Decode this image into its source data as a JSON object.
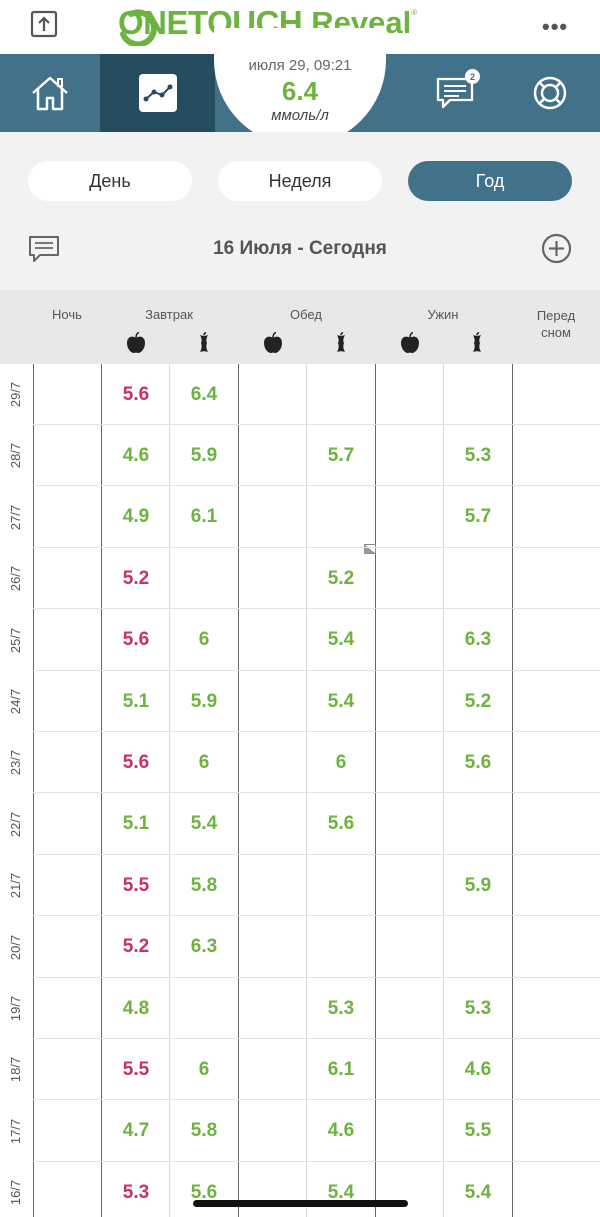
{
  "app": {
    "logo_one": "ONETOUCH",
    "logo_reveal": "Reveal",
    "logo_reg": "®",
    "more_label": "•••"
  },
  "latest_reading": {
    "datetime": "июля 29, 09:21",
    "value": "6.4",
    "unit": "ммоль/л"
  },
  "nav": {
    "messages_badge": "2"
  },
  "period_tabs": [
    {
      "label": "День",
      "active": false
    },
    {
      "label": "Неделя",
      "active": false
    },
    {
      "label": "Год",
      "active": true
    }
  ],
  "range": {
    "label": "16 Июля - Сегодня"
  },
  "columns": {
    "night": "Ночь",
    "breakfast": "Завтрак",
    "lunch": "Обед",
    "dinner": "Ужин",
    "bedtime_line1": "Перед",
    "bedtime_line2": "сном"
  },
  "colors": {
    "brand_green": "#6cb33f",
    "nav_teal": "#417289",
    "nav_active": "#264d5f",
    "low_value": "#cc2f64"
  },
  "rows": [
    {
      "date": "29/7",
      "bb": "5.6",
      "bb_s": "low",
      "ba": "6.4",
      "ba_s": "high",
      "lb": "",
      "la": "",
      "db": "",
      "da": ""
    },
    {
      "date": "28/7",
      "bb": "4.6",
      "bb_s": "high",
      "ba": "5.9",
      "ba_s": "high",
      "lb": "",
      "la": "5.7",
      "db": "",
      "da": "5.3"
    },
    {
      "date": "27/7",
      "bb": "4.9",
      "bb_s": "high",
      "ba": "6.1",
      "ba_s": "high",
      "lb": "",
      "la": "",
      "db": "",
      "da": "5.7"
    },
    {
      "date": "26/7",
      "bb": "5.2",
      "bb_s": "low",
      "ba": "",
      "ba_s": "high",
      "lb": "",
      "la": "5.2",
      "db": "",
      "da": ""
    },
    {
      "date": "25/7",
      "bb": "5.6",
      "bb_s": "low",
      "ba": "6",
      "ba_s": "high",
      "lb": "",
      "la": "5.4",
      "db": "",
      "da": "6.3"
    },
    {
      "date": "24/7",
      "bb": "5.1",
      "bb_s": "high",
      "ba": "5.9",
      "ba_s": "high",
      "lb": "",
      "la": "5.4",
      "db": "",
      "da": "5.2"
    },
    {
      "date": "23/7",
      "bb": "5.6",
      "bb_s": "low",
      "ba": "6",
      "ba_s": "high",
      "lb": "",
      "la": "6",
      "db": "",
      "da": "5.6"
    },
    {
      "date": "22/7",
      "bb": "5.1",
      "bb_s": "high",
      "ba": "5.4",
      "ba_s": "high",
      "lb": "",
      "la": "5.6",
      "db": "",
      "da": ""
    },
    {
      "date": "21/7",
      "bb": "5.5",
      "bb_s": "low",
      "ba": "5.8",
      "ba_s": "high",
      "lb": "",
      "la": "",
      "db": "",
      "da": "5.9"
    },
    {
      "date": "20/7",
      "bb": "5.2",
      "bb_s": "low",
      "ba": "6.3",
      "ba_s": "high",
      "lb": "",
      "la": "",
      "db": "",
      "da": ""
    },
    {
      "date": "19/7",
      "bb": "4.8",
      "bb_s": "high",
      "ba": "",
      "ba_s": "high",
      "lb": "",
      "la": "5.3",
      "db": "",
      "da": "5.3"
    },
    {
      "date": "18/7",
      "bb": "5.5",
      "bb_s": "low",
      "ba": "6",
      "ba_s": "high",
      "lb": "",
      "la": "6.1",
      "db": "",
      "da": "4.6"
    },
    {
      "date": "17/7",
      "bb": "4.7",
      "bb_s": "high",
      "ba": "5.8",
      "ba_s": "high",
      "lb": "",
      "la": "4.6",
      "db": "",
      "da": "5.5"
    },
    {
      "date": "16/7",
      "bb": "5.3",
      "bb_s": "low",
      "ba": "5.6",
      "ba_s": "high",
      "lb": "",
      "la": "5.4",
      "db": "",
      "da": "5.4"
    }
  ]
}
